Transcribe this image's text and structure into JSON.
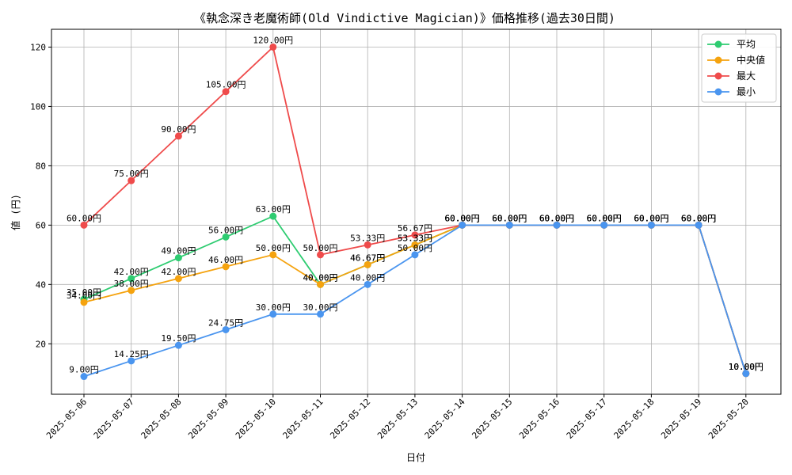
{
  "chart_data": {
    "type": "line",
    "title": "《執念深き老魔術師(Old Vindictive Magician)》価格推移(過去30日間)",
    "xlabel": "日付",
    "ylabel": "値 (円)",
    "ylim": [
      3,
      126
    ],
    "yticks": [
      20,
      40,
      60,
      80,
      100,
      120
    ],
    "grid": true,
    "legend_position": "top-right",
    "value_suffix": "円",
    "categories": [
      "2025-05-06",
      "2025-05-07",
      "2025-05-08",
      "2025-05-09",
      "2025-05-10",
      "2025-05-11",
      "2025-05-12",
      "2025-05-13",
      "2025-05-14",
      "2025-05-15",
      "2025-05-16",
      "2025-05-17",
      "2025-05-18",
      "2025-05-19",
      "2025-05-20"
    ],
    "series": [
      {
        "name": "平均",
        "color": "#2ecc71",
        "values": [
          35.0,
          42.0,
          49.0,
          56.0,
          63.0,
          40.0,
          46.67,
          53.33,
          60.0,
          60.0,
          60.0,
          60.0,
          60.0,
          60.0,
          10.0
        ]
      },
      {
        "name": "中央値",
        "color": "#f5a30f",
        "values": [
          34.0,
          38.0,
          42.0,
          46.0,
          50.0,
          40.0,
          46.67,
          53.33,
          60.0,
          60.0,
          60.0,
          60.0,
          60.0,
          60.0,
          10.0
        ]
      },
      {
        "name": "最大",
        "color": "#ef4b4b",
        "values": [
          60.0,
          75.0,
          90.0,
          105.0,
          120.0,
          50.0,
          53.33,
          56.67,
          60.0,
          60.0,
          60.0,
          60.0,
          60.0,
          60.0,
          10.0
        ]
      },
      {
        "name": "最小",
        "color": "#4a95ef",
        "values": [
          9.0,
          14.25,
          19.5,
          24.75,
          30.0,
          30.0,
          40.0,
          50.0,
          60.0,
          60.0,
          60.0,
          60.0,
          60.0,
          60.0,
          10.0
        ]
      }
    ]
  }
}
